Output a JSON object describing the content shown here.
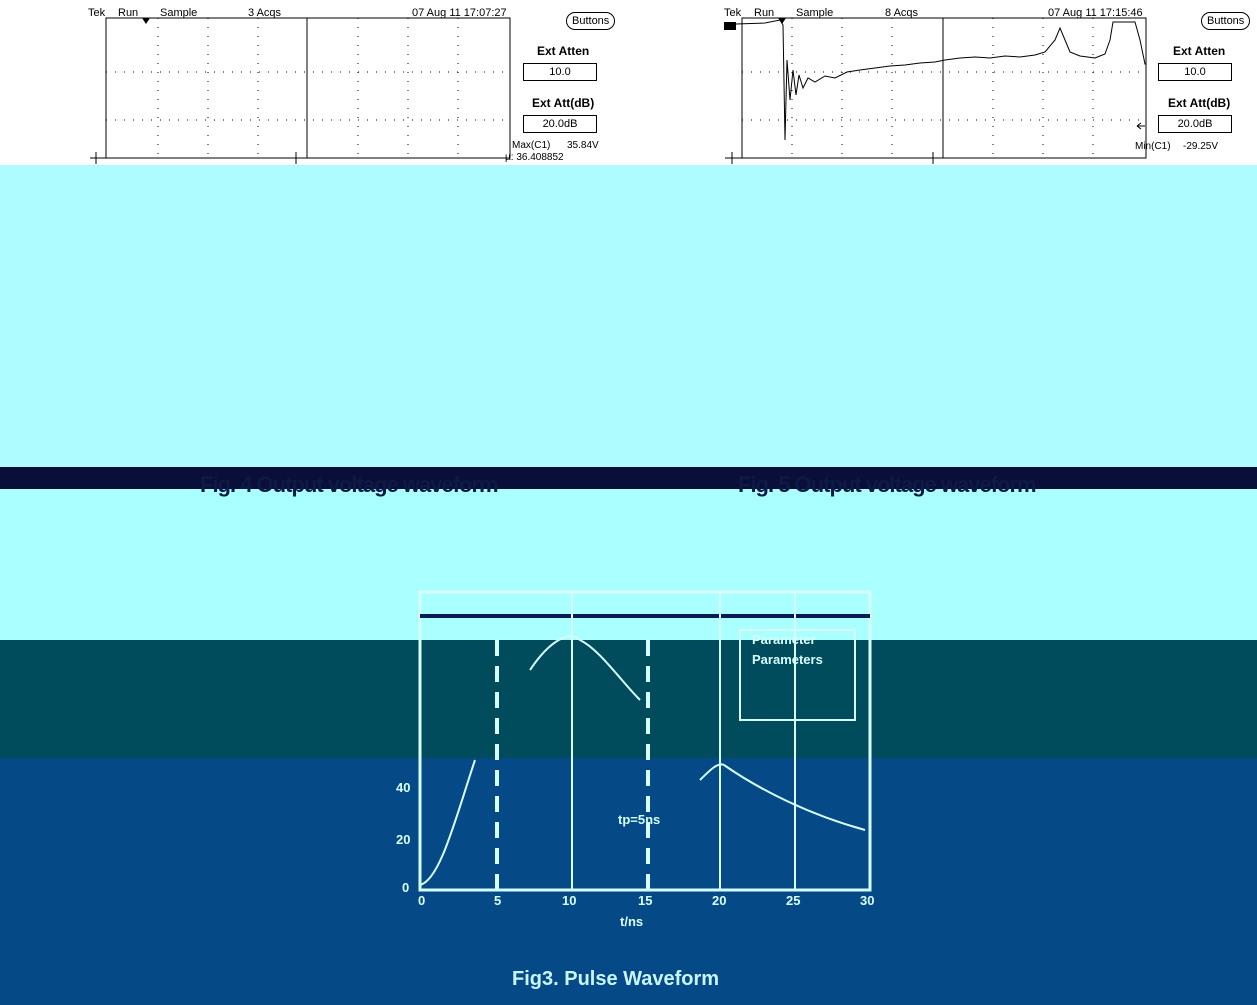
{
  "left_scope": {
    "brand": "Tek",
    "mode": "Run",
    "acq_mode": "Sample",
    "acqs": "3 Acqs",
    "timestamp": "07 Aug 11 17:07:27",
    "buttons_label": "Buttons",
    "ext_atten_label": "Ext Atten",
    "ext_atten_value": "10.0",
    "ext_att_db_label": "Ext Att(dB)",
    "ext_att_db_value": "20.0dB",
    "max_label": "Max(C1)",
    "max_value": "35.84V",
    "mu_label": "µ: 36.408852"
  },
  "right_scope": {
    "brand": "Tek",
    "mode": "Run",
    "acq_mode": "Sample",
    "acqs": "8 Acqs",
    "timestamp": "07 Aug 11 17:15:46",
    "buttons_label": "Buttons",
    "ext_atten_label": "Ext Atten",
    "ext_atten_value": "10.0",
    "ext_att_db_label": "Ext Att(dB)",
    "ext_att_db_value": "20.0dB",
    "min_label": "Min(C1)",
    "min_value": "-29.25V"
  },
  "captions": {
    "left": "Fig. 4 Output voltage waveform",
    "right": "Fig. 5 Output voltage waveform"
  },
  "lower_plot": {
    "legend_1": "Parameter",
    "legend_2": "Parameters",
    "annotation": "tp=5ns",
    "xlabel": "t/ns",
    "x_ticks": [
      "0",
      "5",
      "10",
      "15",
      "20",
      "25",
      "30"
    ],
    "y_ticks": [
      "0",
      "20",
      "40"
    ],
    "title": "Fig3. Pulse Waveform"
  },
  "colors": {
    "cyan_band": "#aaffff",
    "teal_band": "#004b5c",
    "blue_band": "#054a87",
    "navy_strip": "#0a0f3a",
    "plot_line": "#d7ffff"
  }
}
